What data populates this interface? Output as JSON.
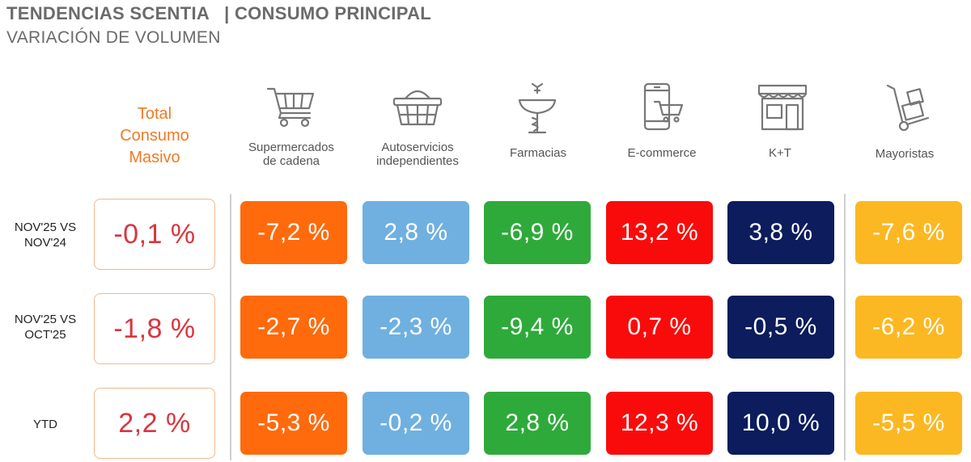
{
  "header": {
    "title_main": "TENDENCIAS SCENTIA",
    "title_section": "| CONSUMO PRINCIPAL",
    "subtitle": "VARIACIÓN DE VOLUMEN"
  },
  "chart_data": {
    "type": "table",
    "title": "TENDENCIAS SCENTIA | CONSUMO PRINCIPAL",
    "subtitle": "VARIACIÓN DE VOLUMEN",
    "total_header": [
      "Total",
      "Consumo",
      "Masivo"
    ],
    "rows": [
      {
        "label": [
          "NOV'25 VS",
          "NOV'24"
        ],
        "total": "-0,1 %",
        "values": [
          "-7,2 %",
          "2,8 %",
          "-6,9 %",
          "13,2 %",
          "3,8 %",
          "-7,6 %"
        ]
      },
      {
        "label": [
          "NOV'25 VS",
          "OCT'25"
        ],
        "total": "-1,8 %",
        "values": [
          "-2,7 %",
          "-2,3 %",
          "-9,4 %",
          "0,7 %",
          "-0,5 %",
          "-6,2 %"
        ]
      },
      {
        "label": [
          "YTD"
        ],
        "total": "2,2 %",
        "values": [
          "-5,3 %",
          "-0,2 %",
          "2,8 %",
          "12,3 %",
          "10,0 %",
          "-5,5 %"
        ]
      }
    ],
    "columns": [
      {
        "label": [
          "Supermercados",
          "de cadena"
        ],
        "icon": "shopping-cart-icon",
        "color": "#ff6a0c"
      },
      {
        "label": [
          "Autoservicios",
          "independientes"
        ],
        "icon": "shopping-basket-icon",
        "color": "#6fb0e0"
      },
      {
        "label": [
          "Farmacias"
        ],
        "icon": "pharmacy-icon",
        "color": "#2eaa3a"
      },
      {
        "label": [
          "E-commerce"
        ],
        "icon": "mobile-cart-icon",
        "color": "#fa0b0b"
      },
      {
        "label": [
          "K+T"
        ],
        "icon": "store-icon",
        "color": "#0c1c5c"
      },
      {
        "label": [
          "Mayoristas"
        ],
        "icon": "hand-truck-icon",
        "color": "#fcb822"
      }
    ],
    "total_color": "#d9363e",
    "accent": "#f07a25"
  }
}
